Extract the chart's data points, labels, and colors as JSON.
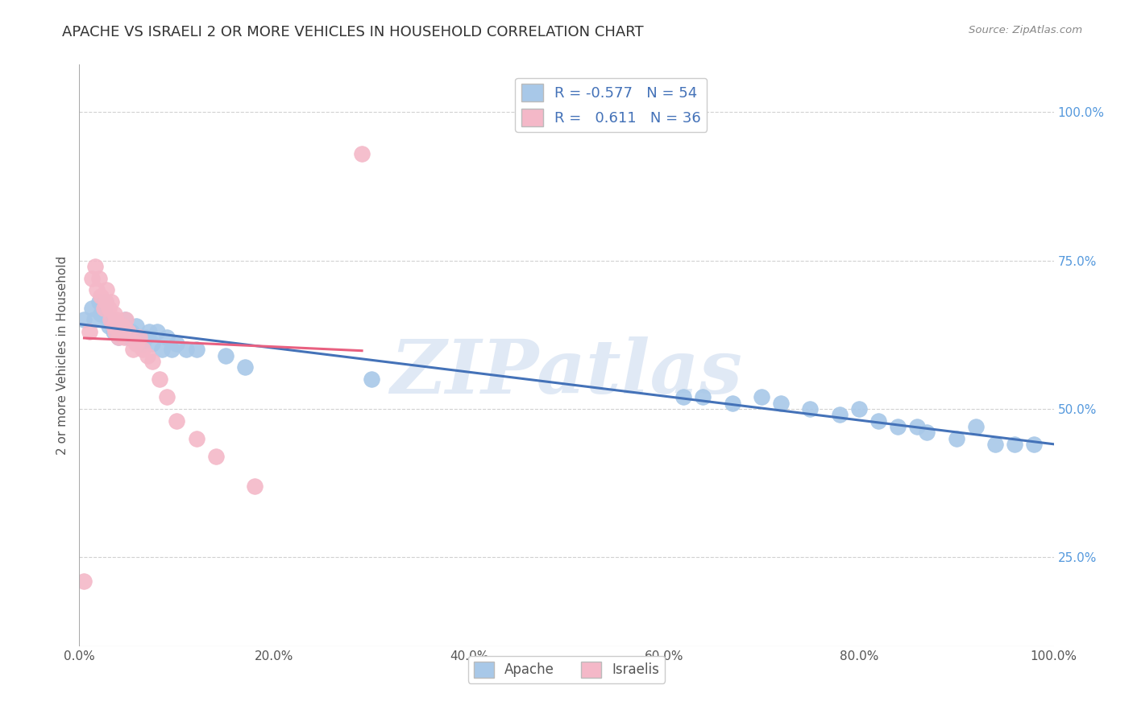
{
  "title": "APACHE VS ISRAELI 2 OR MORE VEHICLES IN HOUSEHOLD CORRELATION CHART",
  "source": "Source: ZipAtlas.com",
  "ylabel": "2 or more Vehicles in Household",
  "apache_color": "#a8c8e8",
  "israeli_color": "#f4b8c8",
  "apache_line_color": "#4472b8",
  "israeli_line_color": "#e86080",
  "watermark": "ZIPatlas",
  "apache_R": -0.577,
  "apache_N": 54,
  "israeli_R": 0.611,
  "israeli_N": 36,
  "xlim": [
    0.0,
    1.0
  ],
  "ylim": [
    0.1,
    1.08
  ],
  "xticks": [
    0.0,
    0.2,
    0.4,
    0.6,
    0.8,
    1.0
  ],
  "yticks_right": [
    0.25,
    0.5,
    0.75,
    1.0
  ],
  "ytick_labels_right": [
    "25.0%",
    "50.0%",
    "75.0%",
    "100.0%"
  ],
  "xtick_labels": [
    "0.0%",
    "20.0%",
    "40.0%",
    "60.0%",
    "80.0%",
    "100.0%"
  ],
  "apache_x": [
    0.005,
    0.013,
    0.015,
    0.02,
    0.022,
    0.025,
    0.027,
    0.03,
    0.032,
    0.033,
    0.035,
    0.037,
    0.038,
    0.04,
    0.042,
    0.044,
    0.045,
    0.047,
    0.05,
    0.053,
    0.055,
    0.058,
    0.06,
    0.065,
    0.068,
    0.072,
    0.075,
    0.08,
    0.085,
    0.09,
    0.095,
    0.1,
    0.11,
    0.12,
    0.15,
    0.17,
    0.3,
    0.62,
    0.64,
    0.67,
    0.7,
    0.72,
    0.75,
    0.78,
    0.8,
    0.82,
    0.84,
    0.86,
    0.87,
    0.9,
    0.92,
    0.94,
    0.96,
    0.98
  ],
  "apache_y": [
    0.65,
    0.67,
    0.65,
    0.68,
    0.66,
    0.67,
    0.68,
    0.64,
    0.65,
    0.65,
    0.63,
    0.64,
    0.64,
    0.62,
    0.63,
    0.64,
    0.63,
    0.65,
    0.62,
    0.63,
    0.62,
    0.64,
    0.62,
    0.61,
    0.62,
    0.63,
    0.61,
    0.63,
    0.6,
    0.62,
    0.6,
    0.61,
    0.6,
    0.6,
    0.59,
    0.57,
    0.55,
    0.52,
    0.52,
    0.51,
    0.52,
    0.51,
    0.5,
    0.49,
    0.5,
    0.48,
    0.47,
    0.47,
    0.46,
    0.45,
    0.47,
    0.44,
    0.44,
    0.44
  ],
  "israeli_x": [
    0.005,
    0.01,
    0.013,
    0.016,
    0.018,
    0.02,
    0.022,
    0.025,
    0.027,
    0.028,
    0.03,
    0.032,
    0.033,
    0.035,
    0.036,
    0.037,
    0.038,
    0.04,
    0.042,
    0.044,
    0.046,
    0.048,
    0.05,
    0.055,
    0.058,
    0.062,
    0.065,
    0.07,
    0.075,
    0.082,
    0.09,
    0.1,
    0.12,
    0.14,
    0.18,
    0.29
  ],
  "israeli_y": [
    0.21,
    0.63,
    0.72,
    0.74,
    0.7,
    0.72,
    0.69,
    0.67,
    0.68,
    0.7,
    0.67,
    0.65,
    0.68,
    0.64,
    0.66,
    0.63,
    0.65,
    0.62,
    0.63,
    0.64,
    0.62,
    0.65,
    0.63,
    0.6,
    0.61,
    0.62,
    0.6,
    0.59,
    0.58,
    0.55,
    0.52,
    0.48,
    0.45,
    0.42,
    0.37,
    0.93
  ]
}
